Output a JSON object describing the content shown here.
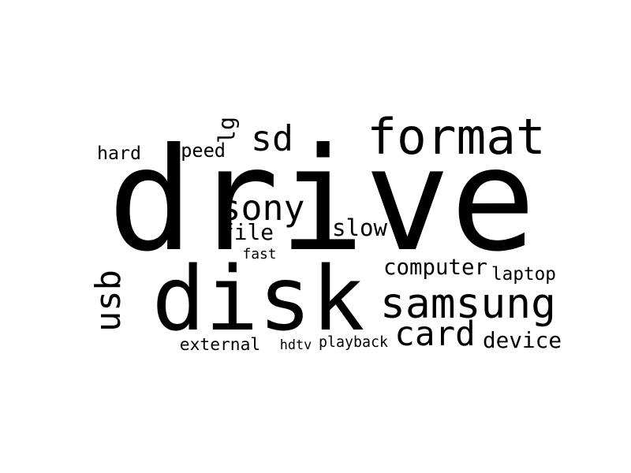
{
  "word_cloud": {
    "text_color": "#000000",
    "background_color": "#ffffff",
    "words": [
      {
        "key": "drive",
        "text": "drive",
        "orientation": "horizontal"
      },
      {
        "key": "disk",
        "text": "disk",
        "orientation": "horizontal"
      },
      {
        "key": "format",
        "text": "format",
        "orientation": "horizontal"
      },
      {
        "key": "samsung",
        "text": "samsung",
        "orientation": "horizontal"
      },
      {
        "key": "card",
        "text": "card",
        "orientation": "horizontal"
      },
      {
        "key": "sd",
        "text": "sd",
        "orientation": "horizontal"
      },
      {
        "key": "sony",
        "text": "sony",
        "orientation": "horizontal"
      },
      {
        "key": "usb",
        "text": "usb",
        "orientation": "vertical"
      },
      {
        "key": "computer",
        "text": "computer",
        "orientation": "horizontal"
      },
      {
        "key": "device",
        "text": "device",
        "orientation": "horizontal"
      },
      {
        "key": "slow",
        "text": "slow",
        "orientation": "horizontal"
      },
      {
        "key": "file",
        "text": "file",
        "orientation": "horizontal"
      },
      {
        "key": "external",
        "text": "external",
        "orientation": "horizontal"
      },
      {
        "key": "laptop",
        "text": "laptop",
        "orientation": "horizontal"
      },
      {
        "key": "hard",
        "text": "hard",
        "orientation": "horizontal"
      },
      {
        "key": "speed",
        "text": "speed",
        "orientation": "horizontal"
      },
      {
        "key": "lg",
        "text": "lg",
        "orientation": "vertical"
      },
      {
        "key": "fast",
        "text": "fast",
        "orientation": "horizontal"
      },
      {
        "key": "hdtv",
        "text": "hdtv",
        "orientation": "horizontal"
      },
      {
        "key": "playback",
        "text": "playback",
        "orientation": "horizontal"
      },
      {
        "key": "dot",
        "text": ".",
        "orientation": "horizontal"
      }
    ]
  }
}
